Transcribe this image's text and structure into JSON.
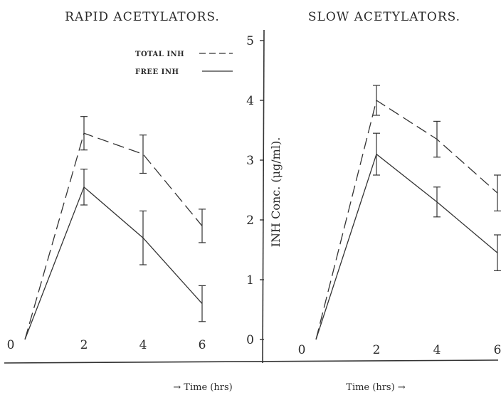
{
  "chart_data": {
    "type": "line",
    "ylabel": "INH Conc. (μg/ml).",
    "ylim": [
      0,
      5
    ],
    "yticks": [
      "0",
      "1",
      "2",
      "3",
      "4",
      "5"
    ],
    "xticks": [
      "0",
      "2",
      "4",
      "6"
    ],
    "legend": {
      "position": "top-center",
      "entries": [
        {
          "label": "TOTAL INH",
          "style": "dashed"
        },
        {
          "label": "FREE INH",
          "style": "solid"
        }
      ]
    },
    "panels": [
      {
        "title": "RAPID ACETYLATORS.",
        "xlabel": "→ Time (hrs)",
        "x": [
          0,
          2,
          4,
          6
        ],
        "series": [
          {
            "name": "TOTAL INH",
            "style": "dashed",
            "values": [
              0,
              3.45,
              3.1,
              1.9
            ],
            "errors": [
              0,
              0.28,
              0.32,
              0.28
            ]
          },
          {
            "name": "FREE INH",
            "style": "solid",
            "values": [
              0,
              2.55,
              1.7,
              0.6
            ],
            "errors": [
              0,
              0.3,
              0.45,
              0.3
            ]
          }
        ]
      },
      {
        "title": "SLOW ACETYLATORS.",
        "xlabel": "Time (hrs) →",
        "x": [
          0,
          2,
          4,
          6
        ],
        "series": [
          {
            "name": "TOTAL INH",
            "style": "dashed",
            "values": [
              0,
              4.0,
              3.35,
              2.45
            ],
            "errors": [
              0,
              0.25,
              0.3,
              0.3
            ]
          },
          {
            "name": "FREE INH",
            "style": "solid",
            "values": [
              0,
              3.1,
              2.3,
              1.45
            ],
            "errors": [
              0,
              0.35,
              0.25,
              0.3
            ]
          }
        ]
      }
    ]
  }
}
